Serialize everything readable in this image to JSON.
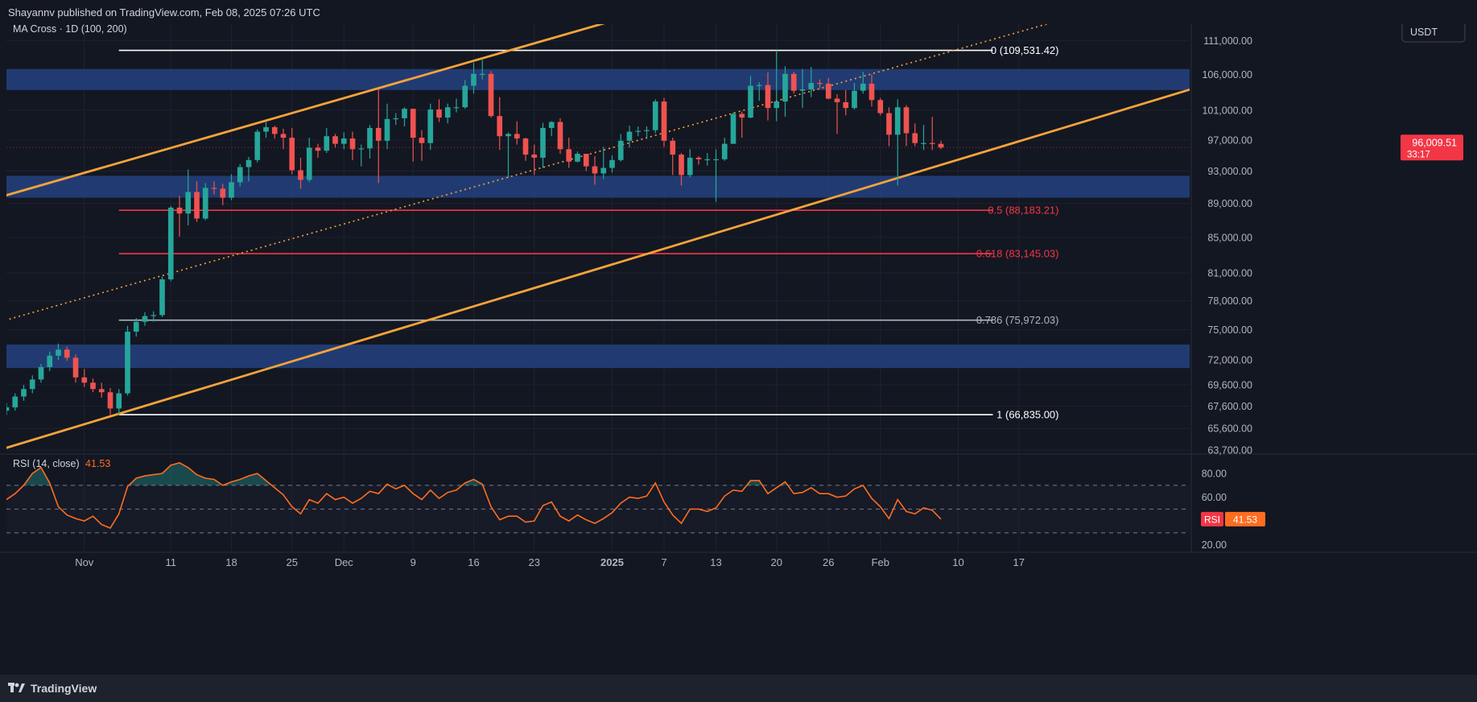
{
  "header": {
    "publisher_line": "Shayannv published on TradingView.com, Feb 08, 2025 07:26 UTC"
  },
  "footer": {
    "brand": "TradingView",
    "logo_icon": "tradingview-logo-icon"
  },
  "colors": {
    "background": "#131722",
    "grid": "#1e2230",
    "up_candle": "#26a69a",
    "down_candle": "#ef5350",
    "channel": "#f7a33a",
    "zone": "#233f7a",
    "fib_red": "#f23645",
    "fib_white": "#ffffff",
    "rsi_line": "#ff6d1f",
    "price_tag": "#f23645"
  },
  "chart_data": [
    {
      "type": "candlestick",
      "title": "MA Cross · 1D (100, 200)",
      "currency": "USDT",
      "x_ticks": [
        "Nov",
        "11",
        "18",
        "25",
        "Dec",
        "9",
        "16",
        "23",
        "2025",
        "7",
        "13",
        "20",
        "26",
        "Feb",
        "10",
        "17"
      ],
      "x_tick_dates": [
        "2024-11-01",
        "2024-11-11",
        "2024-11-18",
        "2024-11-25",
        "2024-12-01",
        "2024-12-09",
        "2024-12-16",
        "2024-12-23",
        "2025-01-01",
        "2025-01-07",
        "2025-01-13",
        "2025-01-20",
        "2025-01-26",
        "2025-02-01",
        "2025-02-10",
        "2025-02-17"
      ],
      "y_ticks": [
        111000,
        106000,
        101000,
        97000,
        93000,
        89000,
        85000,
        81000,
        78000,
        75000,
        72000,
        69600,
        67600,
        65600,
        63700
      ],
      "y_tick_labels": [
        "111,000.00",
        "106,000.00",
        "101,000.00",
        "97,000.00",
        "93,000.00",
        "89,000.00",
        "85,000.00",
        "81,000.00",
        "78,000.00",
        "75,000.00",
        "72,000.00",
        "69,600.00",
        "67,600.00",
        "65,600.00",
        "63,700.00"
      ],
      "y_scale": "log",
      "ylim": [
        63500,
        113500
      ],
      "last_price": "96,009.51",
      "countdown": "33:17",
      "fib_levels": [
        {
          "ratio": "0",
          "value": 109531.42,
          "label": "0 (109,531.42)",
          "color": "#ffffff"
        },
        {
          "ratio": "0.5",
          "value": 88183.21,
          "label": "0.5 (88,183.21)",
          "color": "#f23645"
        },
        {
          "ratio": "0.618",
          "value": 83145.03,
          "label": "0.618 (83,145.03)",
          "color": "#f23645"
        },
        {
          "ratio": "0.786",
          "value": 75972.03,
          "label": "0.786 (75,972.03)",
          "color": "#b2b5be"
        },
        {
          "ratio": "1",
          "value": 66835.0,
          "label": "1 (66,835.00)",
          "color": "#ffffff"
        }
      ],
      "fib_start_date": "2024-11-05",
      "fib_end_date": "2025-02-14",
      "zones": [
        {
          "from": 103800,
          "to": 106800
        },
        {
          "from": 89700,
          "to": 92400
        },
        {
          "from": 71200,
          "to": 73500
        }
      ],
      "channel": {
        "upper": [
          {
            "x": "2024-10-23",
            "y": 90000
          },
          {
            "x": "2024-12-16",
            "y": 108000
          }
        ],
        "lower": [
          {
            "x": "2024-10-23",
            "y": 63900
          },
          {
            "x": "2025-02-02",
            "y": 91800
          }
        ],
        "mid": [
          {
            "x": "2024-10-23",
            "y": 76000
          },
          {
            "x": "2025-01-18",
            "y": 101600
          }
        ]
      },
      "ohlc": [
        [
          "2024-10-23",
          67200,
          67900,
          66800,
          67500
        ],
        [
          "2024-10-24",
          67500,
          68800,
          67200,
          68500
        ],
        [
          "2024-10-25",
          68500,
          69600,
          68100,
          69200
        ],
        [
          "2024-10-26",
          69200,
          70500,
          68800,
          70100
        ],
        [
          "2024-10-27",
          70100,
          71600,
          69800,
          71300
        ],
        [
          "2024-10-28",
          71300,
          72800,
          70900,
          72400
        ],
        [
          "2024-10-29",
          72400,
          73600,
          72000,
          73000
        ],
        [
          "2024-10-30",
          73000,
          73300,
          71900,
          72200
        ],
        [
          "2024-10-31",
          72200,
          72500,
          69800,
          70300
        ],
        [
          "2024-11-01",
          70300,
          71100,
          69400,
          69800
        ],
        [
          "2024-11-02",
          69800,
          70200,
          68900,
          69200
        ],
        [
          "2024-11-03",
          69200,
          69800,
          68400,
          68900
        ],
        [
          "2024-11-04",
          68900,
          69300,
          66800,
          67400
        ],
        [
          "2024-11-05",
          67400,
          69200,
          66835,
          68800
        ],
        [
          "2024-11-06",
          68800,
          75400,
          68600,
          74800
        ],
        [
          "2024-11-07",
          74800,
          76200,
          74300,
          75800
        ],
        [
          "2024-11-08",
          75800,
          76800,
          75400,
          76400
        ],
        [
          "2024-11-09",
          76400,
          76900,
          75800,
          76500
        ],
        [
          "2024-11-10",
          76500,
          80600,
          76300,
          80300
        ],
        [
          "2024-11-11",
          80300,
          88700,
          80100,
          88500
        ],
        [
          "2024-11-12",
          88500,
          89900,
          85100,
          87800
        ],
        [
          "2024-11-13",
          87800,
          93200,
          86400,
          90400
        ],
        [
          "2024-11-14",
          90400,
          91700,
          86800,
          87200
        ],
        [
          "2024-11-15",
          87200,
          91500,
          87000,
          90900
        ],
        [
          "2024-11-16",
          90900,
          91700,
          90100,
          90800
        ],
        [
          "2024-11-17",
          90800,
          91400,
          88800,
          89700
        ],
        [
          "2024-11-18",
          89700,
          92600,
          89400,
          91600
        ],
        [
          "2024-11-19",
          91600,
          93900,
          91100,
          93500
        ],
        [
          "2024-11-20",
          93500,
          94800,
          91700,
          94400
        ],
        [
          "2024-11-21",
          94400,
          98400,
          94100,
          98100
        ],
        [
          "2024-11-22",
          98100,
          99500,
          97300,
          98700
        ],
        [
          "2024-11-23",
          98700,
          98900,
          97200,
          97800
        ],
        [
          "2024-11-24",
          97800,
          98500,
          95800,
          97300
        ],
        [
          "2024-11-25",
          97300,
          98600,
          92600,
          93100
        ],
        [
          "2024-11-26",
          93100,
          94700,
          90800,
          91900
        ],
        [
          "2024-11-27",
          91900,
          97300,
          91600,
          96000
        ],
        [
          "2024-11-28",
          96000,
          96500,
          94700,
          95600
        ],
        [
          "2024-11-29",
          95600,
          98600,
          95300,
          97500
        ],
        [
          "2024-11-30",
          97500,
          97800,
          96000,
          96500
        ],
        [
          "2024-12-01",
          96500,
          98000,
          95800,
          97200
        ],
        [
          "2024-12-02",
          97200,
          98100,
          94400,
          95800
        ],
        [
          "2024-12-03",
          95800,
          96400,
          93600,
          95900
        ],
        [
          "2024-12-04",
          95900,
          99000,
          94600,
          98600
        ],
        [
          "2024-12-05",
          98600,
          103900,
          91500,
          96900
        ],
        [
          "2024-12-06",
          96900,
          101900,
          95800,
          99800
        ],
        [
          "2024-12-07",
          99800,
          100600,
          99000,
          99900
        ],
        [
          "2024-12-08",
          99900,
          101400,
          98800,
          101200
        ],
        [
          "2024-12-09",
          101200,
          101200,
          94200,
          97300
        ],
        [
          "2024-12-10",
          97300,
          98300,
          94300,
          96600
        ],
        [
          "2024-12-11",
          96600,
          101900,
          95700,
          101100
        ],
        [
          "2024-12-12",
          101100,
          102500,
          99400,
          100000
        ],
        [
          "2024-12-13",
          100000,
          101900,
          99200,
          101400
        ],
        [
          "2024-12-14",
          101400,
          102600,
          100700,
          101400
        ],
        [
          "2024-12-15",
          101400,
          105200,
          101200,
          104400
        ],
        [
          "2024-12-16",
          104400,
          107700,
          103300,
          106100
        ],
        [
          "2024-12-17",
          106100,
          108300,
          105300,
          106100
        ],
        [
          "2024-12-18",
          106100,
          106500,
          100000,
          100200
        ],
        [
          "2024-12-19",
          100200,
          102800,
          95700,
          97500
        ],
        [
          "2024-12-20",
          97500,
          98000,
          92200,
          97800
        ],
        [
          "2024-12-21",
          97800,
          99500,
          96400,
          97200
        ],
        [
          "2024-12-22",
          97200,
          97300,
          94300,
          95100
        ],
        [
          "2024-12-23",
          95100,
          96400,
          92500,
          94700
        ],
        [
          "2024-12-24",
          94700,
          99300,
          93400,
          98600
        ],
        [
          "2024-12-25",
          98600,
          99500,
          97500,
          99400
        ],
        [
          "2024-12-26",
          99400,
          99900,
          95200,
          95800
        ],
        [
          "2024-12-27",
          95800,
          97300,
          93400,
          94200
        ],
        [
          "2024-12-28",
          94200,
          95500,
          94100,
          95200
        ],
        [
          "2024-12-29",
          95200,
          95200,
          93000,
          93600
        ],
        [
          "2024-12-30",
          93600,
          94900,
          91300,
          92700
        ],
        [
          "2024-12-31",
          92700,
          96100,
          92000,
          93400
        ],
        [
          "2025-01-01",
          93400,
          95000,
          92800,
          94400
        ],
        [
          "2025-01-02",
          94400,
          97800,
          94200,
          96900
        ],
        [
          "2025-01-03",
          96900,
          98900,
          96000,
          98100
        ],
        [
          "2025-01-04",
          98100,
          98800,
          97500,
          98200
        ],
        [
          "2025-01-05",
          98200,
          98800,
          97300,
          98300
        ],
        [
          "2025-01-06",
          98300,
          102500,
          97900,
          102200
        ],
        [
          "2025-01-07",
          102200,
          102700,
          96100,
          96900
        ],
        [
          "2025-01-08",
          96900,
          97300,
          92500,
          95100
        ],
        [
          "2025-01-09",
          95100,
          95300,
          91200,
          92500
        ],
        [
          "2025-01-10",
          92500,
          95800,
          92200,
          94700
        ],
        [
          "2025-01-11",
          94700,
          94900,
          93800,
          94500
        ],
        [
          "2025-01-12",
          94500,
          95300,
          93700,
          94500
        ],
        [
          "2025-01-13",
          94500,
          95800,
          89200,
          94500
        ],
        [
          "2025-01-14",
          94500,
          97300,
          94300,
          96500
        ],
        [
          "2025-01-15",
          96500,
          100700,
          96500,
          100500
        ],
        [
          "2025-01-16",
          100500,
          100800,
          97300,
          100000
        ],
        [
          "2025-01-17",
          100000,
          105800,
          99900,
          104400
        ],
        [
          "2025-01-18",
          104400,
          104900,
          102300,
          104500
        ],
        [
          "2025-01-19",
          104500,
          106300,
          99600,
          101300
        ],
        [
          "2025-01-20",
          101300,
          109531,
          99500,
          102200
        ],
        [
          "2025-01-21",
          102200,
          107200,
          100100,
          106100
        ],
        [
          "2025-01-22",
          106100,
          106400,
          103300,
          103700
        ],
        [
          "2025-01-23",
          103700,
          106800,
          101300,
          103900
        ],
        [
          "2025-01-24",
          103900,
          107100,
          102800,
          104800
        ],
        [
          "2025-01-25",
          104800,
          105300,
          104100,
          104700
        ],
        [
          "2025-01-26",
          104700,
          105500,
          102500,
          102600
        ],
        [
          "2025-01-27",
          102600,
          103200,
          97800,
          102100
        ],
        [
          "2025-01-28",
          102100,
          103800,
          100300,
          101300
        ],
        [
          "2025-01-29",
          101300,
          104800,
          101100,
          103700
        ],
        [
          "2025-01-30",
          103700,
          106400,
          103300,
          104700
        ],
        [
          "2025-01-31",
          104700,
          106000,
          101500,
          102400
        ],
        [
          "2025-02-01",
          102400,
          102700,
          100300,
          100600
        ],
        [
          "2025-02-02",
          100600,
          101400,
          96200,
          97700
        ],
        [
          "2025-02-03",
          97700,
          102500,
          91200,
          101400
        ],
        [
          "2025-02-04",
          101400,
          101700,
          96200,
          97900
        ],
        [
          "2025-02-05",
          97900,
          99200,
          96200,
          96600
        ],
        [
          "2025-02-06",
          96600,
          99000,
          95700,
          96600
        ],
        [
          "2025-02-07",
          96600,
          100100,
          95700,
          96500
        ],
        [
          "2025-02-08",
          96500,
          96900,
          95800,
          96009.51
        ]
      ]
    },
    {
      "type": "line",
      "title": "RSI (14, close)",
      "value_label": "41.53",
      "tag_label": "RSI",
      "y_ticks": [
        80,
        60,
        20
      ],
      "y_tick_labels": [
        "80.00",
        "60.00",
        "20.00"
      ],
      "bands": [
        70,
        50,
        30
      ],
      "ylim": [
        15,
        95
      ],
      "series": [
        {
          "values": [
            58,
            63,
            70,
            80,
            85,
            72,
            52,
            45,
            42,
            40,
            44,
            37,
            34,
            46,
            69,
            76,
            78,
            79,
            80,
            87,
            89,
            85,
            79,
            76,
            75,
            70,
            73,
            75,
            78,
            80,
            74,
            68,
            62,
            52,
            46,
            58,
            55,
            63,
            58,
            60,
            55,
            59,
            65,
            63,
            71,
            67,
            70,
            63,
            58,
            66,
            59,
            64,
            66,
            72,
            75,
            71,
            52,
            41,
            44,
            44,
            39,
            40,
            53,
            56,
            44,
            40,
            45,
            41,
            38,
            42,
            47,
            55,
            60,
            59,
            61,
            72,
            56,
            45,
            38,
            50,
            50,
            48,
            51,
            61,
            66,
            65,
            74,
            74,
            63,
            68,
            73,
            63,
            64,
            68,
            63,
            63,
            60,
            61,
            67,
            70,
            59,
            52,
            42,
            58,
            48,
            46,
            51,
            49,
            41.53
          ]
        }
      ]
    }
  ]
}
